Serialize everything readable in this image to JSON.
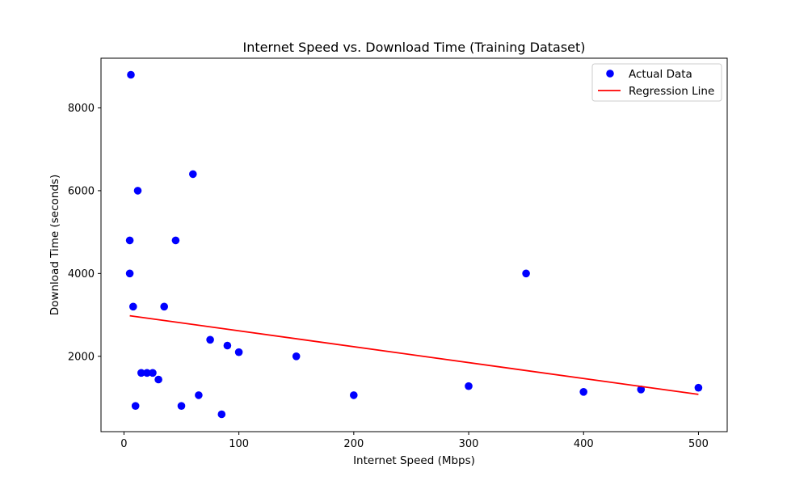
{
  "chart_data": {
    "type": "scatter",
    "title": "Internet Speed vs. Download Time (Training Dataset)",
    "xlabel": "Internet Speed (Mbps)",
    "ylabel": "Download Time (seconds)",
    "xlim": [
      -20,
      525
    ],
    "ylim": [
      180,
      9200
    ],
    "xticks": [
      0,
      100,
      200,
      300,
      400,
      500
    ],
    "yticks": [
      2000,
      4000,
      6000,
      8000
    ],
    "grid": false,
    "legend_position": "top-right",
    "series": [
      {
        "name": "Actual Data",
        "kind": "scatter",
        "color": "#0000ff",
        "points": [
          {
            "x": 6,
            "y": 8800
          },
          {
            "x": 60,
            "y": 6400
          },
          {
            "x": 12,
            "y": 6000
          },
          {
            "x": 5,
            "y": 4800
          },
          {
            "x": 45,
            "y": 4800
          },
          {
            "x": 5,
            "y": 4000
          },
          {
            "x": 350,
            "y": 4000
          },
          {
            "x": 8,
            "y": 3200
          },
          {
            "x": 35,
            "y": 3200
          },
          {
            "x": 75,
            "y": 2400
          },
          {
            "x": 90,
            "y": 2260
          },
          {
            "x": 100,
            "y": 2100
          },
          {
            "x": 150,
            "y": 2000
          },
          {
            "x": 15,
            "y": 1600
          },
          {
            "x": 20,
            "y": 1600
          },
          {
            "x": 25,
            "y": 1600
          },
          {
            "x": 30,
            "y": 1440
          },
          {
            "x": 300,
            "y": 1280
          },
          {
            "x": 500,
            "y": 1240
          },
          {
            "x": 450,
            "y": 1200
          },
          {
            "x": 400,
            "y": 1140
          },
          {
            "x": 65,
            "y": 1060
          },
          {
            "x": 200,
            "y": 1060
          },
          {
            "x": 10,
            "y": 800
          },
          {
            "x": 50,
            "y": 800
          },
          {
            "x": 85,
            "y": 600
          }
        ]
      },
      {
        "name": "Regression Line",
        "kind": "line",
        "color": "#ff0000",
        "points": [
          {
            "x": 5,
            "y": 2980
          },
          {
            "x": 500,
            "y": 1080
          }
        ]
      }
    ]
  }
}
